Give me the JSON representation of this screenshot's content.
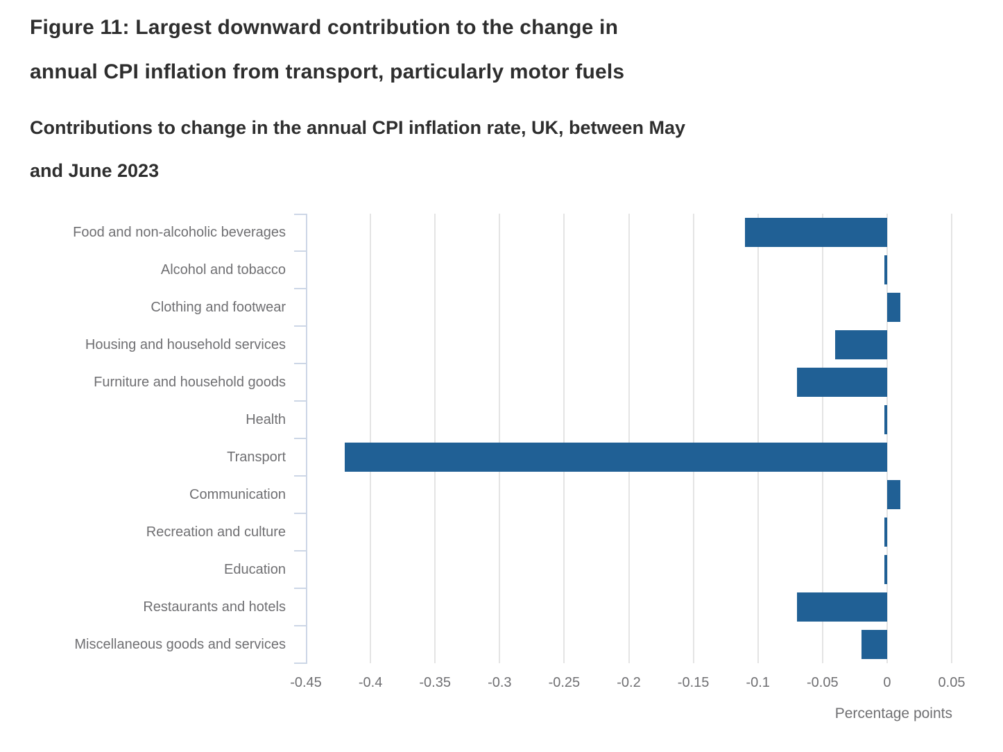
{
  "title": {
    "lines": [
      "Figure 11: Largest downward contribution to the change in",
      "annual CPI inflation from transport, particularly motor fuels"
    ]
  },
  "subtitle": {
    "lines": [
      "Contributions to change in the annual CPI inflation rate, UK, between May",
      "and June 2023"
    ]
  },
  "chart_data": {
    "type": "bar",
    "orientation": "horizontal",
    "title": "Figure 11: Largest downward contribution to the change in annual CPI inflation from transport, particularly motor fuels",
    "subtitle": "Contributions to change in the annual CPI inflation rate, UK, between May and June 2023",
    "categories": [
      "Food and non-alcoholic beverages",
      "Alcohol and tobacco",
      "Clothing and footwear",
      "Housing and household services",
      "Furniture and household goods",
      "Health",
      "Transport",
      "Communication",
      "Recreation and culture",
      "Education",
      "Restaurants and hotels",
      "Miscellaneous goods and services"
    ],
    "values": [
      -0.11,
      -0.002,
      0.01,
      -0.04,
      -0.07,
      -0.002,
      -0.42,
      0.01,
      -0.002,
      -0.002,
      -0.07,
      -0.02
    ],
    "xlabel": "Percentage points",
    "ylabel": "",
    "xlim": [
      -0.45,
      0.05
    ],
    "x_ticks": [
      "-0.45",
      "-0.4",
      "-0.35",
      "-0.3",
      "-0.25",
      "-0.2",
      "-0.15",
      "-0.1",
      "-0.05",
      "0",
      "0.05"
    ],
    "x_tick_values": [
      -0.45,
      -0.4,
      -0.35,
      -0.3,
      -0.25,
      -0.2,
      -0.15,
      -0.1,
      -0.05,
      0,
      0.05
    ],
    "grid": true,
    "legend": "none",
    "bar_color": "#206095",
    "gridline_color": "#e4e4e4",
    "axis_color": "#ccd6e6",
    "label_color": "#6f6f72"
  }
}
